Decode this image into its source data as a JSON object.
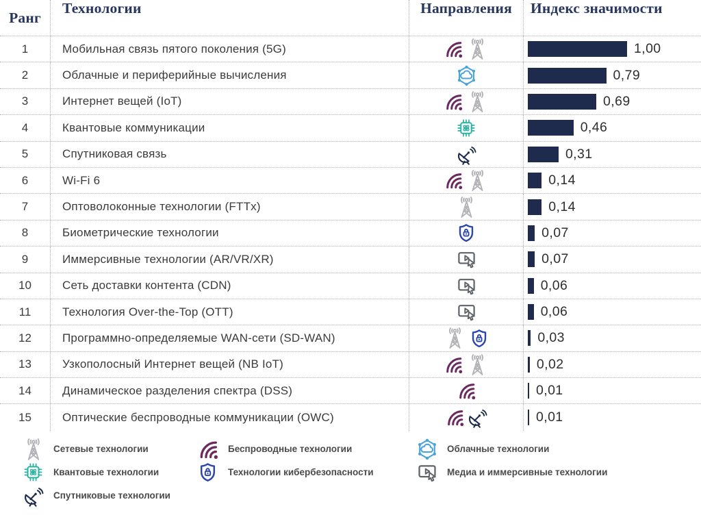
{
  "header": {
    "rank": "Ранг",
    "technology": "Технологии",
    "directions": "Направления",
    "index": "Индекс значимости"
  },
  "colors": {
    "bar": "#1f2b4d",
    "header_text": "#26365f",
    "body_text": "#3b3b3b",
    "value_text": "#2e2e2e",
    "legend_text": "#4a4a4a",
    "separator": "#b0b0b0",
    "wireless": "#6c2a63",
    "network": "#b3b3b7",
    "cloud": "#4ba3dc",
    "quantum": "#29b3a3",
    "cybersecurity": "#2a45ac",
    "satellite": "#1f2b4d",
    "media": "#5f6368"
  },
  "rows": [
    {
      "rank": "1",
      "name": "Мобильная связь пятого поколения (5G)",
      "icons": [
        "wireless",
        "tower"
      ],
      "value": 1.0,
      "value_label": "1,00"
    },
    {
      "rank": "2",
      "name": "Облачные и периферийные вычисления",
      "icons": [
        "cloud"
      ],
      "value": 0.79,
      "value_label": "0,79"
    },
    {
      "rank": "3",
      "name": "Интернет вещей (IoT)",
      "icons": [
        "wireless",
        "tower"
      ],
      "value": 0.69,
      "value_label": "0,69"
    },
    {
      "rank": "4",
      "name": "Квантовые коммуникации",
      "icons": [
        "chip"
      ],
      "value": 0.46,
      "value_label": "0,46"
    },
    {
      "rank": "5",
      "name": "Спутниковая связь",
      "icons": [
        "satellite"
      ],
      "value": 0.31,
      "value_label": "0,31"
    },
    {
      "rank": "6",
      "name": "Wi-Fi 6",
      "icons": [
        "wireless",
        "tower"
      ],
      "value": 0.14,
      "value_label": "0,14"
    },
    {
      "rank": "7",
      "name": "Оптоволоконные технологии (FTTx)",
      "icons": [
        "tower"
      ],
      "value": 0.14,
      "value_label": "0,14"
    },
    {
      "rank": "8",
      "name": "Биометрические технологии",
      "icons": [
        "shield"
      ],
      "value": 0.07,
      "value_label": "0,07"
    },
    {
      "rank": "9",
      "name": "Иммерсивные технологии (AR/VR/XR)",
      "icons": [
        "media"
      ],
      "value": 0.07,
      "value_label": "0,07"
    },
    {
      "rank": "10",
      "name": "Сеть доставки контента (CDN)",
      "icons": [
        "media"
      ],
      "value": 0.06,
      "value_label": "0,06"
    },
    {
      "rank": "11",
      "name": "Технология Over-the-Top (OTT)",
      "icons": [
        "media"
      ],
      "value": 0.06,
      "value_label": "0,06"
    },
    {
      "rank": "12",
      "name": "Программно-определяемые WAN-сети (SD-WAN)",
      "icons": [
        "tower",
        "shield"
      ],
      "value": 0.03,
      "value_label": "0,03"
    },
    {
      "rank": "13",
      "name": "Узкополосный Интернет вещей (NB IoT)",
      "icons": [
        "wireless",
        "tower"
      ],
      "value": 0.02,
      "value_label": "0,02"
    },
    {
      "rank": "14",
      "name": "Динамическое разделения спектра (DSS)",
      "icons": [
        "wireless"
      ],
      "value": 0.01,
      "value_label": "0,01"
    },
    {
      "rank": "15",
      "name": "Оптические беспроводные коммуникации (OWC)",
      "icons": [
        "wireless",
        "satellite"
      ],
      "value": 0.01,
      "value_label": "0,01"
    }
  ],
  "legend": [
    {
      "icon": "tower",
      "label": "Сетевые технологии"
    },
    {
      "icon": "wireless",
      "label": "Беспроводные технологии"
    },
    {
      "icon": "cloud",
      "label": "Облачные технологии"
    },
    {
      "icon": "chip",
      "label": "Квантовые технологии"
    },
    {
      "icon": "shield",
      "label": "Технологии кибербезопасности"
    },
    {
      "icon": "media",
      "label": "Медиа и иммерсивные технологии"
    },
    {
      "icon": "satellite",
      "label": "Спутниковые технологии"
    }
  ],
  "chart_data": {
    "type": "bar",
    "orientation": "horizontal",
    "title": "Индекс значимости",
    "xlabel": "Индекс значимости",
    "ylabel": "Технологии",
    "xlim": [
      0,
      1
    ],
    "bar_color": "#1f2b4d",
    "categories": [
      "Мобильная связь пятого поколения (5G)",
      "Облачные и периферийные вычисления",
      "Интернет вещей (IoT)",
      "Квантовые коммуникации",
      "Спутниковая связь",
      "Wi-Fi 6",
      "Оптоволоконные технологии (FTTx)",
      "Биометрические технологии",
      "Иммерсивные технологии (AR/VR/XR)",
      "Сеть доставки контента (CDN)",
      "Технология Over-the-Top (OTT)",
      "Программно-определяемые WAN-сети (SD-WAN)",
      "Узкополосный Интернет вещей (NB IoT)",
      "Динамическое разделения спектра (DSS)",
      "Оптические беспроводные коммуникации (OWC)"
    ],
    "values": [
      1.0,
      0.79,
      0.69,
      0.46,
      0.31,
      0.14,
      0.14,
      0.07,
      0.07,
      0.06,
      0.06,
      0.03,
      0.02,
      0.01,
      0.01
    ],
    "value_labels": [
      "1,00",
      "0,79",
      "0,69",
      "0,46",
      "0,31",
      "0,14",
      "0,14",
      "0,07",
      "0,07",
      "0,06",
      "0,06",
      "0,03",
      "0,02",
      "0,01",
      "0,01"
    ]
  }
}
